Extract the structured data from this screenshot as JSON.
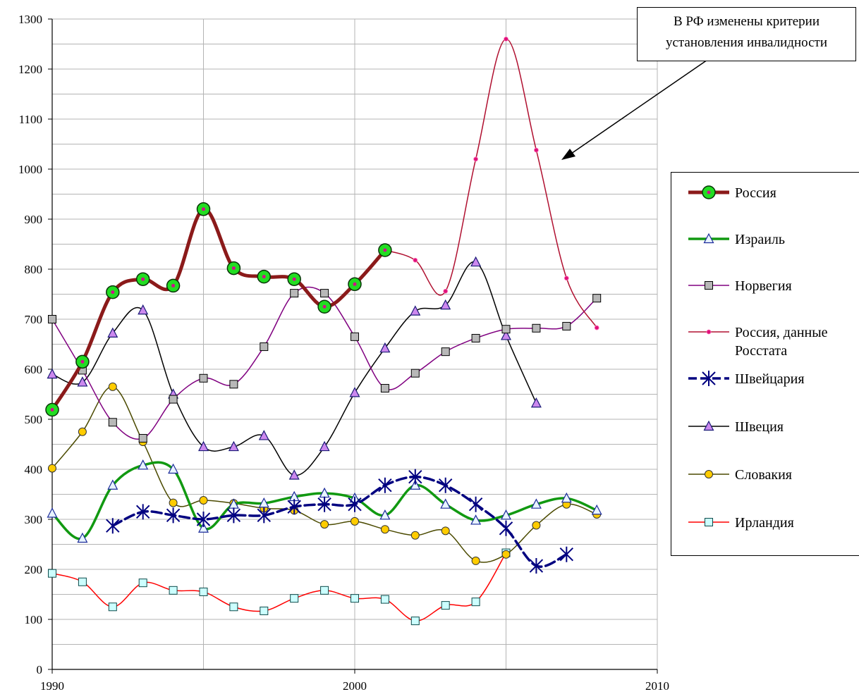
{
  "annotation": {
    "line1": "В РФ изменены критерии",
    "line2": "установления инвалидности"
  },
  "chart_data": {
    "type": "line",
    "title": "",
    "xlabel": "",
    "ylabel": "",
    "xlim": [
      1990,
      2010
    ],
    "ylim": [
      0,
      1300
    ],
    "x_ticks": [
      1990,
      2000,
      2010
    ],
    "y_ticks": [
      0,
      100,
      200,
      300,
      400,
      500,
      600,
      700,
      800,
      900,
      1000,
      1100,
      1200,
      1300
    ],
    "grid": true,
    "legend_position": "right",
    "series": [
      {
        "name": "Россия",
        "color": "#8B1A1A",
        "width": 5,
        "marker": "circle-green",
        "points": [
          [
            1990,
            519
          ],
          [
            1991,
            615
          ],
          [
            1992,
            754
          ],
          [
            1993,
            780
          ],
          [
            1994,
            767
          ],
          [
            1995,
            920
          ],
          [
            1996,
            802
          ],
          [
            1997,
            785
          ],
          [
            1998,
            780
          ],
          [
            1999,
            725
          ],
          [
            2000,
            770
          ],
          [
            2001,
            838
          ]
        ]
      },
      {
        "name": "Израиль",
        "color": "#119911",
        "width": 3.5,
        "marker": "triangle-blue",
        "points": [
          [
            1990,
            312
          ],
          [
            1991,
            262
          ],
          [
            1992,
            368
          ],
          [
            1993,
            408
          ],
          [
            1994,
            400
          ],
          [
            1995,
            282
          ],
          [
            1996,
            330
          ],
          [
            1997,
            332
          ],
          [
            1998,
            345
          ],
          [
            1999,
            352
          ],
          [
            2000,
            342
          ],
          [
            2001,
            308
          ],
          [
            2002,
            368
          ],
          [
            2003,
            330
          ],
          [
            2004,
            298
          ],
          [
            2005,
            308
          ],
          [
            2006,
            330
          ],
          [
            2007,
            342
          ],
          [
            2008,
            318
          ]
        ]
      },
      {
        "name": "Норвегия",
        "color": "#800080",
        "width": 1.5,
        "marker": "square-gray",
        "points": [
          [
            1990,
            700
          ],
          [
            1991,
            598
          ],
          [
            1992,
            494
          ],
          [
            1993,
            462
          ],
          [
            1994,
            540
          ],
          [
            1995,
            582
          ],
          [
            1996,
            570
          ],
          [
            1997,
            645
          ],
          [
            1998,
            752
          ],
          [
            1999,
            752
          ],
          [
            2000,
            665
          ],
          [
            2001,
            562
          ],
          [
            2002,
            592
          ],
          [
            2003,
            635
          ],
          [
            2004,
            662
          ],
          [
            2005,
            680
          ],
          [
            2006,
            682
          ],
          [
            2007,
            686
          ],
          [
            2008,
            742
          ]
        ]
      },
      {
        "name": "Россия, данные Росстата",
        "color": "#B01030",
        "width": 1.5,
        "marker": "dot-magenta",
        "points": [
          [
            2001,
            838
          ],
          [
            2002,
            818
          ],
          [
            2003,
            756
          ],
          [
            2004,
            1020
          ],
          [
            2005,
            1260
          ],
          [
            2006,
            1038
          ],
          [
            2007,
            782
          ],
          [
            2008,
            683
          ]
        ]
      },
      {
        "name": "Швейцария",
        "color": "#000080",
        "width": 3.5,
        "dash": true,
        "marker": "star-blue",
        "points": [
          [
            1992,
            287
          ],
          [
            1993,
            315
          ],
          [
            1994,
            308
          ],
          [
            1995,
            300
          ],
          [
            1996,
            308
          ],
          [
            1997,
            308
          ],
          [
            1998,
            325
          ],
          [
            1999,
            330
          ],
          [
            2000,
            330
          ],
          [
            2001,
            368
          ],
          [
            2002,
            385
          ],
          [
            2003,
            368
          ],
          [
            2004,
            330
          ],
          [
            2005,
            282
          ],
          [
            2006,
            207
          ],
          [
            2007,
            230
          ]
        ]
      },
      {
        "name": "Швеция",
        "color": "#000000",
        "width": 1.5,
        "marker": "triangle-violet",
        "points": [
          [
            1990,
            590
          ],
          [
            1991,
            574
          ],
          [
            1992,
            672
          ],
          [
            1993,
            718
          ],
          [
            1994,
            550
          ],
          [
            1995,
            445
          ],
          [
            1996,
            445
          ],
          [
            1997,
            467
          ],
          [
            1998,
            388
          ],
          [
            1999,
            445
          ],
          [
            2000,
            553
          ],
          [
            2001,
            642
          ],
          [
            2002,
            716
          ],
          [
            2003,
            728
          ],
          [
            2004,
            814
          ],
          [
            2005,
            667
          ],
          [
            2006,
            532
          ]
        ]
      },
      {
        "name": "Словакия",
        "color": "#4B4A00",
        "width": 1.5,
        "marker": "circle-yellow",
        "points": [
          [
            1990,
            402
          ],
          [
            1991,
            475
          ],
          [
            1992,
            565
          ],
          [
            1993,
            455
          ],
          [
            1994,
            333
          ],
          [
            1995,
            338
          ],
          [
            1996,
            332
          ],
          [
            1997,
            322
          ],
          [
            1998,
            318
          ],
          [
            1999,
            290
          ],
          [
            2000,
            296
          ],
          [
            2001,
            280
          ],
          [
            2002,
            268
          ],
          [
            2003,
            277
          ],
          [
            2004,
            217
          ],
          [
            2005,
            230
          ],
          [
            2006,
            288
          ],
          [
            2007,
            330
          ],
          [
            2008,
            310
          ]
        ]
      },
      {
        "name": "Ирландия",
        "color": "#FF0000",
        "width": 1.5,
        "marker": "square-cyan",
        "points": [
          [
            1990,
            192
          ],
          [
            1991,
            175
          ],
          [
            1992,
            125
          ],
          [
            1993,
            173
          ],
          [
            1994,
            158
          ],
          [
            1995,
            155
          ],
          [
            1996,
            125
          ],
          [
            1997,
            117
          ],
          [
            1998,
            142
          ],
          [
            1999,
            158
          ],
          [
            2000,
            142
          ],
          [
            2001,
            140
          ],
          [
            2002,
            97
          ],
          [
            2003,
            128
          ],
          [
            2004,
            135
          ],
          [
            2005,
            233
          ]
        ]
      }
    ]
  }
}
